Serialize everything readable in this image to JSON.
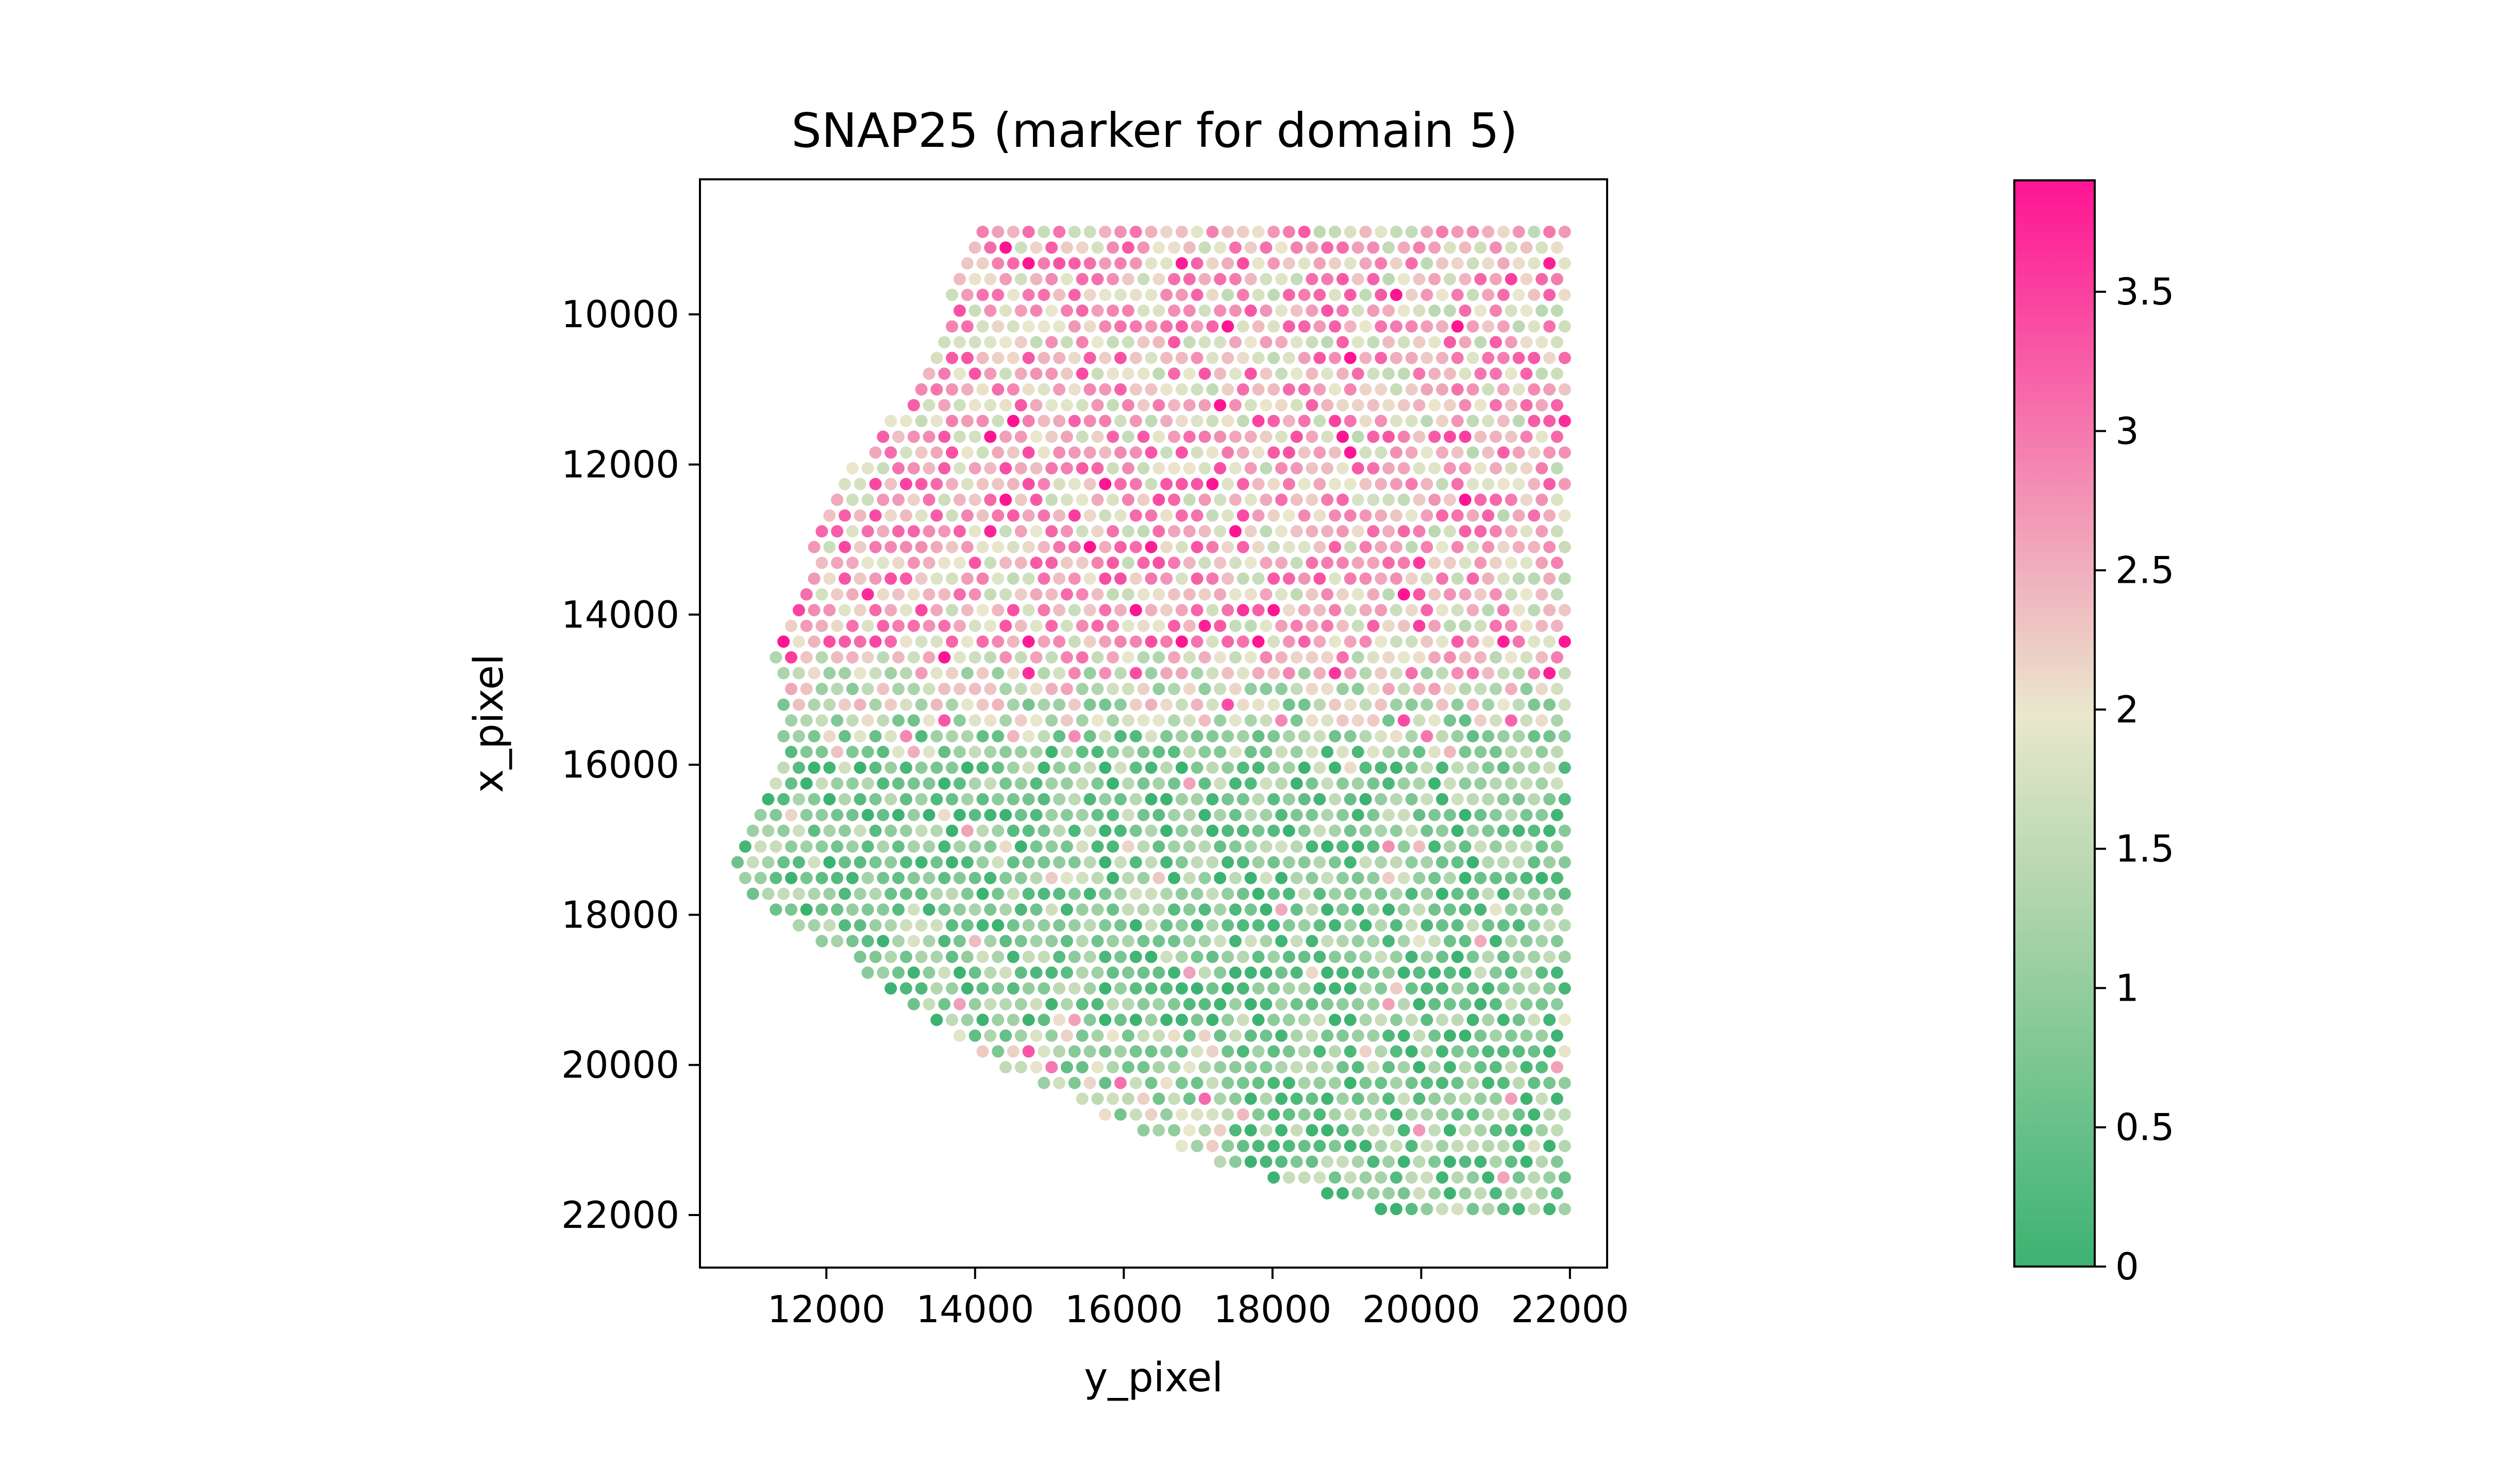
{
  "chart_data": {
    "type": "scatter",
    "title": "SNAP25 (marker for domain 5)",
    "xlabel": "y_pixel",
    "ylabel": "x_pixel",
    "xlim": [
      10300,
      22500
    ],
    "ylim": [
      22700,
      8200
    ],
    "y_inverted": true,
    "x_ticks": [
      12000,
      14000,
      16000,
      18000,
      20000,
      22000
    ],
    "y_ticks": [
      10000,
      12000,
      14000,
      16000,
      18000,
      20000,
      22000
    ],
    "grid": false,
    "legend": "none",
    "colorbar": {
      "min": 0,
      "max": 3.9,
      "ticks": [
        "0",
        "0.5",
        "1",
        "1.5",
        "2",
        "2.5",
        "3",
        "3.5"
      ],
      "tick_values": [
        0,
        0.5,
        1,
        1.5,
        2,
        2.5,
        3,
        3.5
      ],
      "colors": [
        "#3cb371",
        "#eae7cc",
        "#ff1493"
      ]
    },
    "spot_pitch": 206,
    "row_pitch": 210,
    "x_right_edge": 21930,
    "points_description": "hexagonal grid of spots; expression mostly high (pink) in the upper region above about x_pixel 14500 and low (green) in the lower region",
    "summary_by_region": [
      {
        "region": "x_pixel < 14500 (upper tissue)",
        "typical_value": 2.4
      },
      {
        "region": "x_pixel 14500-16000 (transition)",
        "typical_value": 1.3
      },
      {
        "region": "x_pixel > 16000 (lower tissue)",
        "typical_value": 0.7
      }
    ]
  }
}
